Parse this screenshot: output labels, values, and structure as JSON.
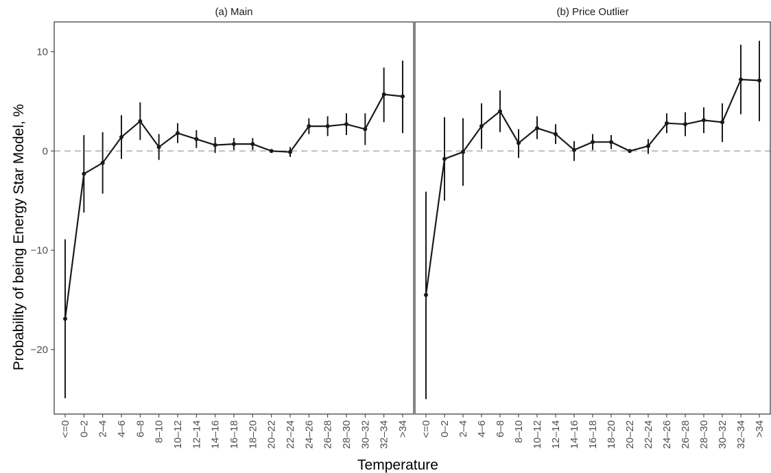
{
  "figure": {
    "xlabel": "Temperature",
    "ylabel": "Probability of being Energy Star Model, %"
  },
  "chart_data": [
    {
      "type": "line",
      "title": "(a) Main",
      "categories": [
        "<=0",
        "0–2",
        "2–4",
        "4–6",
        "6–8",
        "8–10",
        "10–12",
        "12–14",
        "14–16",
        "16–18",
        "18–20",
        "20–22",
        "22–24",
        "24–26",
        "26–28",
        "28–30",
        "30–32",
        "32–34",
        ">34"
      ],
      "values": [
        -16.9,
        -2.3,
        -1.2,
        1.4,
        3.0,
        0.4,
        1.8,
        1.2,
        0.6,
        0.7,
        0.7,
        0.0,
        -0.1,
        2.5,
        2.5,
        2.7,
        2.2,
        5.7,
        5.5
      ],
      "ci_low": [
        -24.9,
        -6.2,
        -4.3,
        -0.8,
        1.1,
        -0.9,
        0.8,
        0.3,
        -0.2,
        0.1,
        0.1,
        0.0,
        -0.6,
        1.7,
        1.5,
        1.6,
        0.6,
        2.9,
        1.8
      ],
      "ci_high": [
        -8.9,
        1.6,
        1.9,
        3.6,
        4.9,
        1.7,
        2.8,
        2.1,
        1.4,
        1.3,
        1.3,
        0.0,
        0.4,
        3.3,
        3.5,
        3.8,
        3.8,
        8.4,
        9.1
      ],
      "ylim": [
        -26.5,
        13
      ],
      "yticks": [
        -20,
        -10,
        0,
        10
      ],
      "reference_line": 0,
      "grid": false,
      "colors": {
        "line": "#1a1a1a",
        "reference": "#bdbdbd"
      }
    },
    {
      "type": "line",
      "title": "(b) Price Outlier",
      "categories": [
        "<=0",
        "0–2",
        "2–4",
        "4–6",
        "6–8",
        "8–10",
        "10–12",
        "12–14",
        "14–16",
        "16–18",
        "18–20",
        "20–22",
        "22–24",
        "24–26",
        "26–28",
        "28–30",
        "30–32",
        "32–34",
        ">34"
      ],
      "values": [
        -14.5,
        -0.8,
        -0.1,
        2.5,
        4.0,
        0.8,
        2.3,
        1.7,
        0.1,
        0.9,
        0.9,
        0.0,
        0.5,
        2.8,
        2.7,
        3.1,
        2.9,
        7.2,
        7.1
      ],
      "ci_low": [
        -25.0,
        -5.0,
        -3.5,
        0.2,
        1.9,
        -0.7,
        1.2,
        0.7,
        -1.0,
        0.1,
        0.2,
        0.0,
        -0.3,
        1.8,
        1.5,
        1.8,
        0.9,
        3.7,
        3.0
      ],
      "ci_high": [
        -4.1,
        3.4,
        3.3,
        4.8,
        6.1,
        2.2,
        3.5,
        2.7,
        1.0,
        1.7,
        1.6,
        0.0,
        1.2,
        3.8,
        3.9,
        4.4,
        4.8,
        10.7,
        11.1
      ],
      "ylim": [
        -26.5,
        13
      ],
      "yticks": [
        -20,
        -10,
        0,
        10
      ],
      "reference_line": 0,
      "grid": false,
      "colors": {
        "line": "#1a1a1a",
        "reference": "#bdbdbd"
      }
    }
  ]
}
